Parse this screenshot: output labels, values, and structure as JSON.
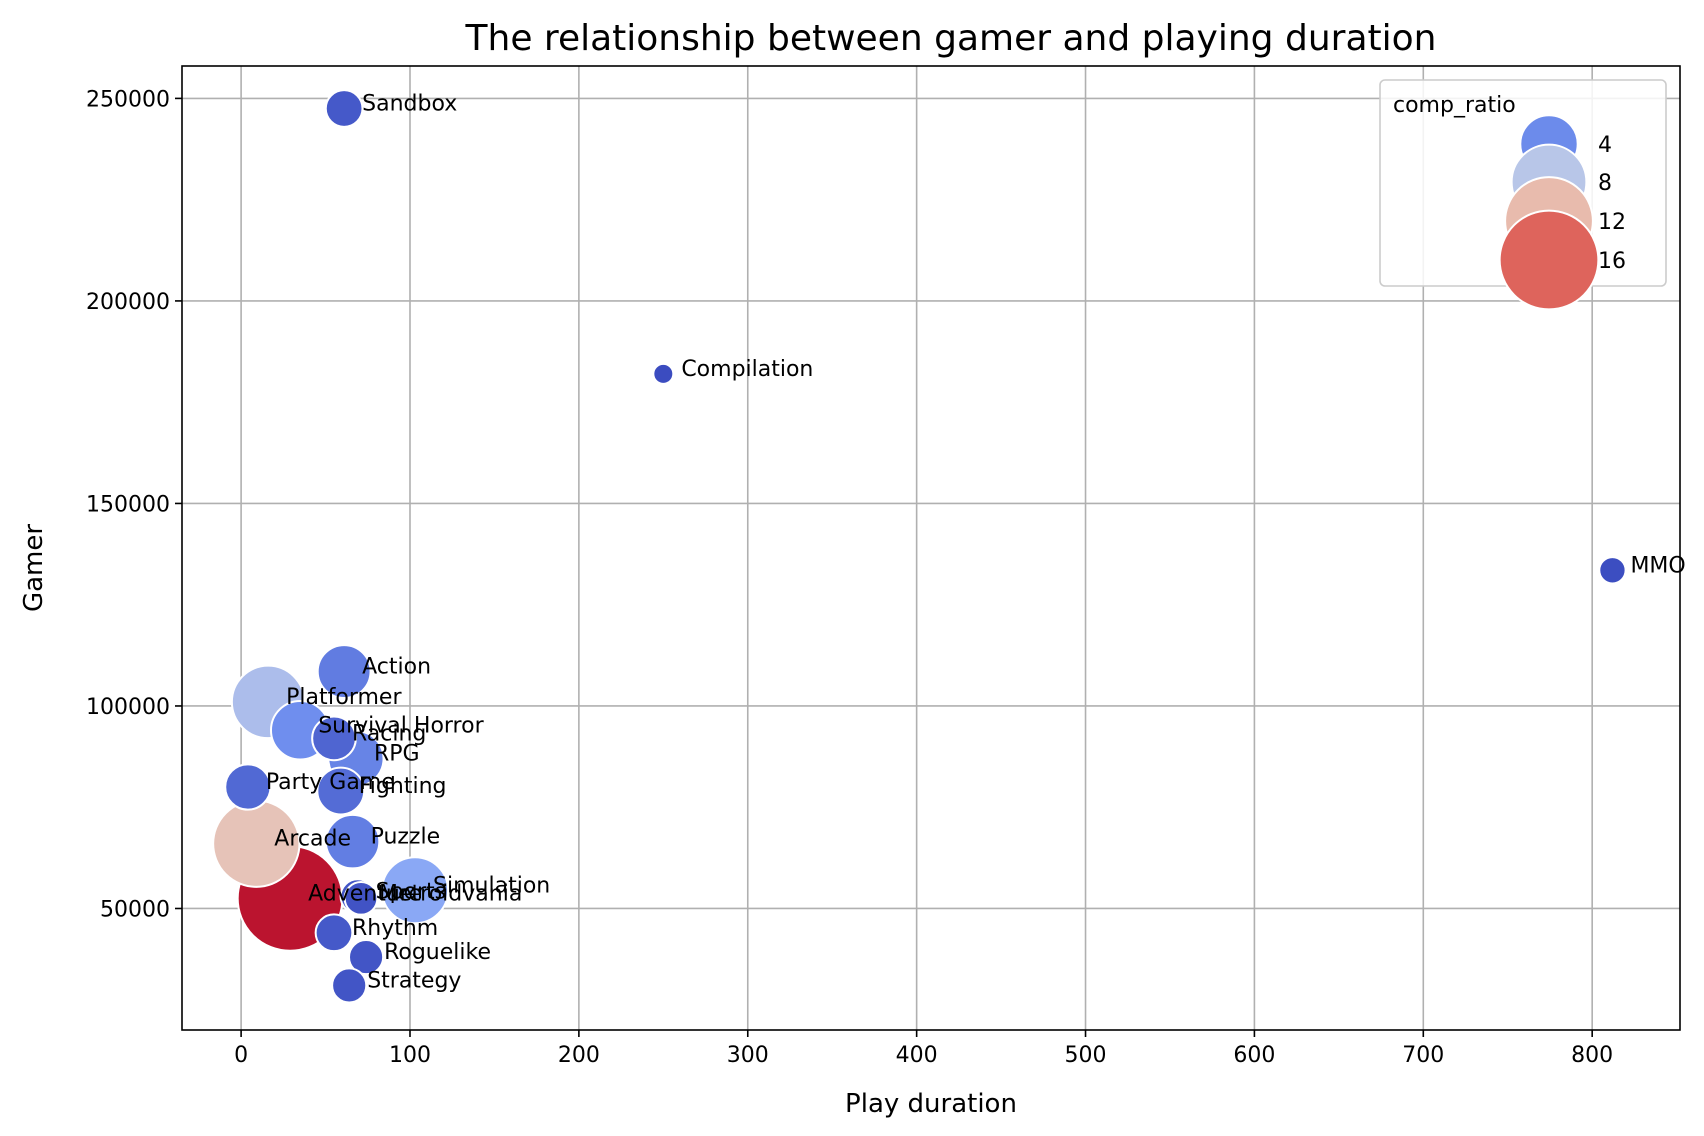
{
  "chart_data": {
    "type": "scatter",
    "title": "The relationship between gamer and playing duration",
    "xlabel": "Play duration",
    "ylabel": "Gamer",
    "xlim": [
      -35,
      852
    ],
    "ylim": [
      20000,
      258000
    ],
    "xticks": [
      0,
      100,
      200,
      300,
      400,
      500,
      600,
      700,
      800
    ],
    "yticks": [
      50000,
      100000,
      150000,
      200000,
      250000
    ],
    "grid": true,
    "size_and_color_variable": "comp_ratio",
    "colormap": "coolwarm",
    "color_range": [
      0.5,
      19
    ],
    "legend": {
      "title": "comp_ratio",
      "placement": "top-right",
      "entries": [
        {
          "label": "4",
          "value": 4
        },
        {
          "label": "8",
          "value": 8
        },
        {
          "label": "12",
          "value": 12
        },
        {
          "label": "16",
          "value": 16
        }
      ]
    },
    "points": [
      {
        "label": "Sandbox",
        "x": 61,
        "y": 247500,
        "comp_ratio": 1.2
      },
      {
        "label": "Compilation",
        "x": 250,
        "y": 182000,
        "comp_ratio": 0.5
      },
      {
        "label": "MMO",
        "x": 812,
        "y": 133500,
        "comp_ratio": 0.6
      },
      {
        "label": "Action",
        "x": 61,
        "y": 108500,
        "comp_ratio": 3.2
      },
      {
        "label": "Platformer",
        "x": 16,
        "y": 101000,
        "comp_ratio": 7.4
      },
      {
        "label": "Survival Horror",
        "x": 35,
        "y": 94000,
        "comp_ratio": 4.2
      },
      {
        "label": "Racing",
        "x": 55,
        "y": 92000,
        "comp_ratio": 1.9
      },
      {
        "label": "RPG",
        "x": 68,
        "y": 87000,
        "comp_ratio": 3.6
      },
      {
        "label": "Party Game",
        "x": 4,
        "y": 80000,
        "comp_ratio": 2.1
      },
      {
        "label": "Fighting",
        "x": 59,
        "y": 79000,
        "comp_ratio": 2.3
      },
      {
        "label": "Puzzle",
        "x": 66,
        "y": 66500,
        "comp_ratio": 3.3
      },
      {
        "label": "Arcade",
        "x": 9,
        "y": 66000,
        "comp_ratio": 11.5
      },
      {
        "label": "Simulation",
        "x": 103,
        "y": 54500,
        "comp_ratio": 5.8
      },
      {
        "label": "Sports",
        "x": 69,
        "y": 53000,
        "comp_ratio": 1.0
      },
      {
        "label": "Metroidvania",
        "x": 71,
        "y": 52500,
        "comp_ratio": 0.9
      },
      {
        "label": "Adventure",
        "x": 29,
        "y": 52500,
        "comp_ratio": 18.5
      },
      {
        "label": "Rhythm",
        "x": 55,
        "y": 44000,
        "comp_ratio": 1.2
      },
      {
        "label": "Roguelike",
        "x": 74,
        "y": 38000,
        "comp_ratio": 1.0
      },
      {
        "label": "Strategy",
        "x": 64,
        "y": 31000,
        "comp_ratio": 1.0
      }
    ]
  }
}
